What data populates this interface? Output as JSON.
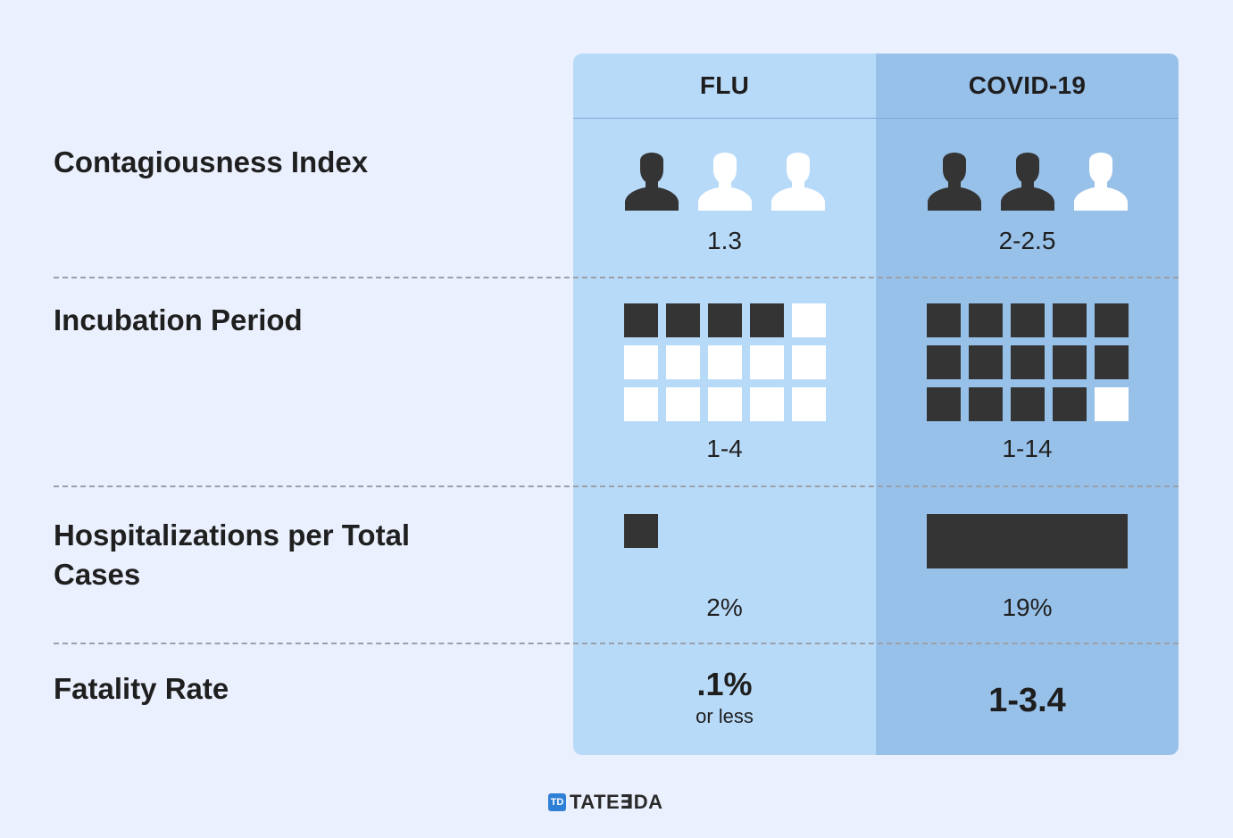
{
  "columns": [
    {
      "name": "FLU"
    },
    {
      "name": "COVID-19"
    }
  ],
  "rows": {
    "contagiousness": {
      "label": "Contagiousness Index",
      "flu": {
        "value": "1.3",
        "filled_people": 1,
        "total_people": 3
      },
      "covid": {
        "value": "2-2.5",
        "filled_people": 2,
        "total_people": 3
      }
    },
    "incubation": {
      "label": "Incubation Period",
      "flu": {
        "value": "1-4",
        "filled_squares": 4,
        "total_squares": 15
      },
      "covid": {
        "value": "1-14",
        "filled_squares": 14,
        "total_squares": 15
      }
    },
    "hospitalizations": {
      "label": "Hospitalizations per Total Cases",
      "flu": {
        "value": "2%",
        "percent": 2
      },
      "covid": {
        "value": "19%",
        "percent": 19
      }
    },
    "fatality": {
      "label": "Fatality Rate",
      "flu": {
        "value": ".1%",
        "note": "or less"
      },
      "covid": {
        "value": "1-3.4"
      }
    }
  },
  "logo": {
    "mark": "TD",
    "text": "TATE∃DA"
  },
  "colors": {
    "flu_column": "#b8daf9",
    "covid_column": "#98c1ea",
    "filled": "#343434",
    "empty": "#ffffff",
    "logo_accent": "#2e7fd6"
  }
}
